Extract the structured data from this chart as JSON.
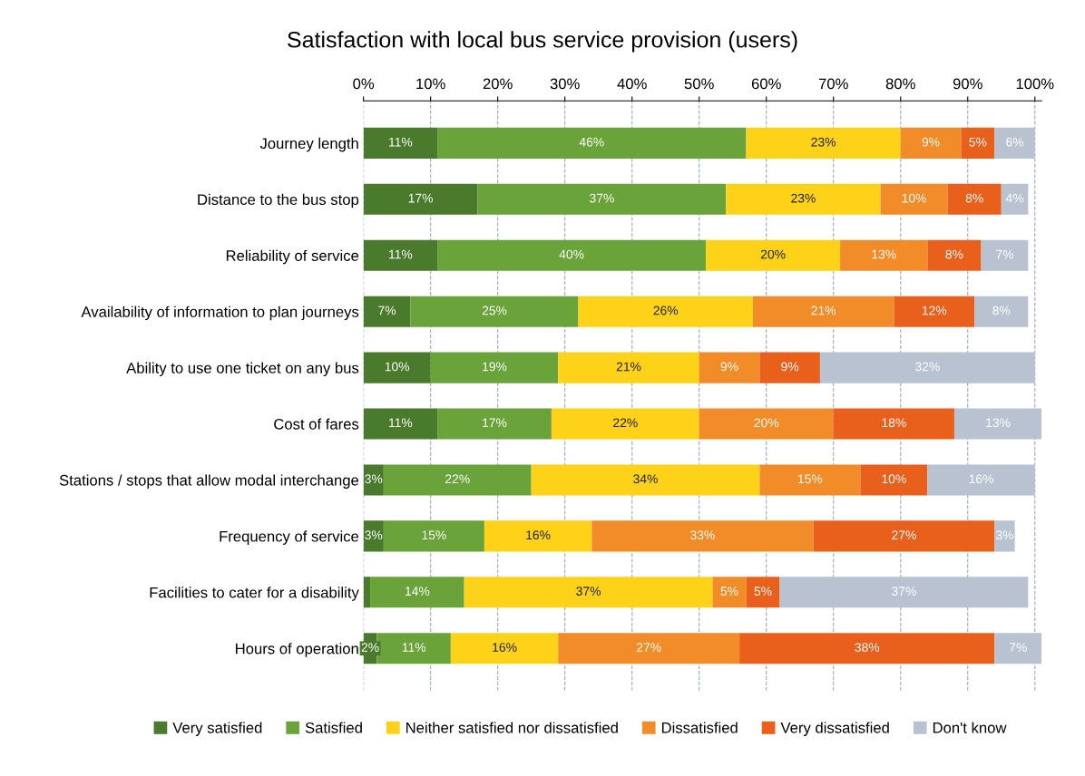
{
  "chart_data": {
    "type": "bar",
    "orientation": "horizontal",
    "stacked": true,
    "title": "Satisfaction with local bus service provision (users)",
    "categories": [
      "Journey length",
      "Distance to the bus stop",
      "Reliability of service",
      "Availability of information to plan journeys",
      "Ability to use one ticket on any bus",
      "Cost of fares",
      "Stations / stops that allow modal interchange",
      "Frequency of service",
      "Facilities to cater for a disability",
      "Hours of operation"
    ],
    "series": [
      {
        "name": "Very satisfied",
        "color": "#4a7a2c",
        "values": [
          11,
          17,
          11,
          7,
          10,
          11,
          3,
          3,
          1,
          2
        ],
        "value_labels": [
          "11%",
          "17%",
          "11%",
          "7%",
          "10%",
          "11%",
          "3%",
          "3%",
          null,
          "2%"
        ]
      },
      {
        "name": "Satisfied",
        "color": "#6aa33a",
        "values": [
          46,
          37,
          40,
          25,
          19,
          17,
          22,
          15,
          14,
          11
        ],
        "value_labels": [
          "46%",
          "37%",
          "40%",
          "25%",
          "19%",
          "17%",
          "22%",
          "15%",
          "14%",
          "11%"
        ]
      },
      {
        "name": "Neither satisfied nor dissatisfied",
        "color": "#ffd21a",
        "values": [
          23,
          23,
          20,
          26,
          21,
          22,
          34,
          16,
          37,
          16
        ],
        "value_labels": [
          "23%",
          "23%",
          "20%",
          "26%",
          "21%",
          "22%",
          "34%",
          "16%",
          "37%",
          "16%"
        ]
      },
      {
        "name": "Dissatisfied",
        "color": "#f28c28",
        "values": [
          9,
          10,
          13,
          21,
          9,
          20,
          15,
          33,
          5,
          27
        ],
        "value_labels": [
          "9%",
          "10%",
          "13%",
          "21%",
          "9%",
          "20%",
          "15%",
          "33%",
          "5%",
          "27%"
        ]
      },
      {
        "name": "Very dissatisfied",
        "color": "#e8601c",
        "values": [
          5,
          8,
          8,
          12,
          9,
          18,
          10,
          27,
          5,
          38
        ],
        "value_labels": [
          "5%",
          "8%",
          "8%",
          "12%",
          "9%",
          "18%",
          "10%",
          "27%",
          "5%",
          "38%"
        ]
      },
      {
        "name": "Don't know",
        "color": "#b8c2d0",
        "values": [
          6,
          4,
          7,
          8,
          32,
          13,
          16,
          3,
          37,
          7
        ],
        "value_labels": [
          "6%",
          "4%",
          "7%",
          "8%",
          "32%",
          "13%",
          "16%",
          "3%",
          "37%",
          "7%"
        ]
      }
    ],
    "xlim": [
      0,
      101
    ],
    "xticks": [
      {
        "value": 0,
        "label": "0%"
      },
      {
        "value": 10,
        "label": "10%"
      },
      {
        "value": 20,
        "label": "20%"
      },
      {
        "value": 30,
        "label": "30%"
      },
      {
        "value": 40,
        "label": "40%"
      },
      {
        "value": 50,
        "label": "50%"
      },
      {
        "value": 60,
        "label": "60%"
      },
      {
        "value": 70,
        "label": "70%"
      },
      {
        "value": 80,
        "label": "80%"
      },
      {
        "value": 90,
        "label": "90%"
      },
      {
        "value": 100,
        "label": "100%"
      }
    ],
    "grid": "x",
    "legend": "bottom"
  }
}
